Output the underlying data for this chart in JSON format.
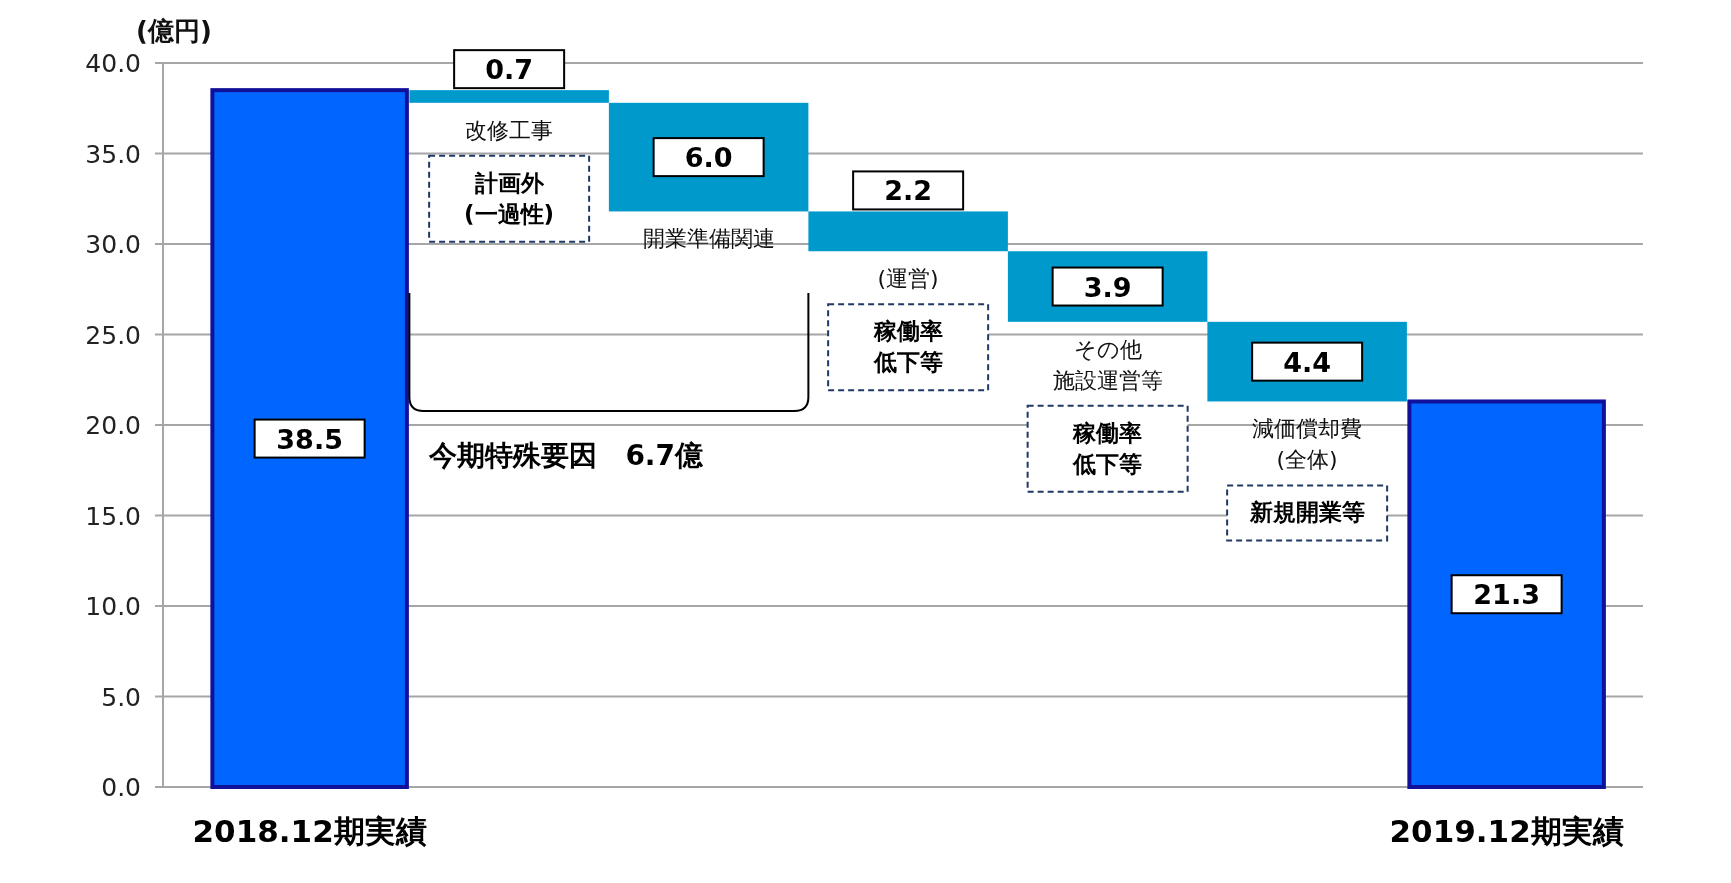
{
  "chart_data": {
    "type": "bar",
    "ylabel": "(億円)",
    "categories": [
      "2018.12期実績",
      null,
      null,
      null,
      null,
      null,
      "2019.12期実績"
    ],
    "values": [
      38.5,
      -0.7,
      -6.0,
      -2.2,
      -3.9,
      -4.4,
      21.3
    ],
    "base": [
      0,
      38.5,
      37.8,
      31.8,
      29.6,
      25.7,
      0
    ],
    "colors": [
      "#0066ff",
      "#0099cc",
      "#0099cc",
      "#0099cc",
      "#0099cc",
      "#0099cc",
      "#0066ff"
    ],
    "value_labels": [
      "38.5",
      "0.7",
      "6.0",
      "2.2",
      "3.9",
      "4.4",
      "21.3"
    ],
    "ylim": [
      0,
      40
    ],
    "yticks": [
      {
        "value": 0,
        "label": "0.0"
      },
      {
        "value": 5,
        "label": "5.0"
      },
      {
        "value": 10,
        "label": "10.0"
      },
      {
        "value": 15,
        "label": "15.0"
      },
      {
        "value": 20,
        "label": "20.0"
      },
      {
        "value": 25,
        "label": "25.0"
      },
      {
        "value": 30,
        "label": "30.0"
      },
      {
        "value": 35,
        "label": "35.0"
      },
      {
        "value": 40,
        "label": "40.0"
      }
    ],
    "grid": "y",
    "annotations": [
      "改修工事",
      "計画外(一過性)",
      "開業準備関連",
      "(運営)",
      "稼働率低下等",
      "その他施設運営等",
      "稼働率低下等",
      "減価償却費(全体)",
      "新規開業等",
      "今期特殊要因　6.7億"
    ]
  }
}
